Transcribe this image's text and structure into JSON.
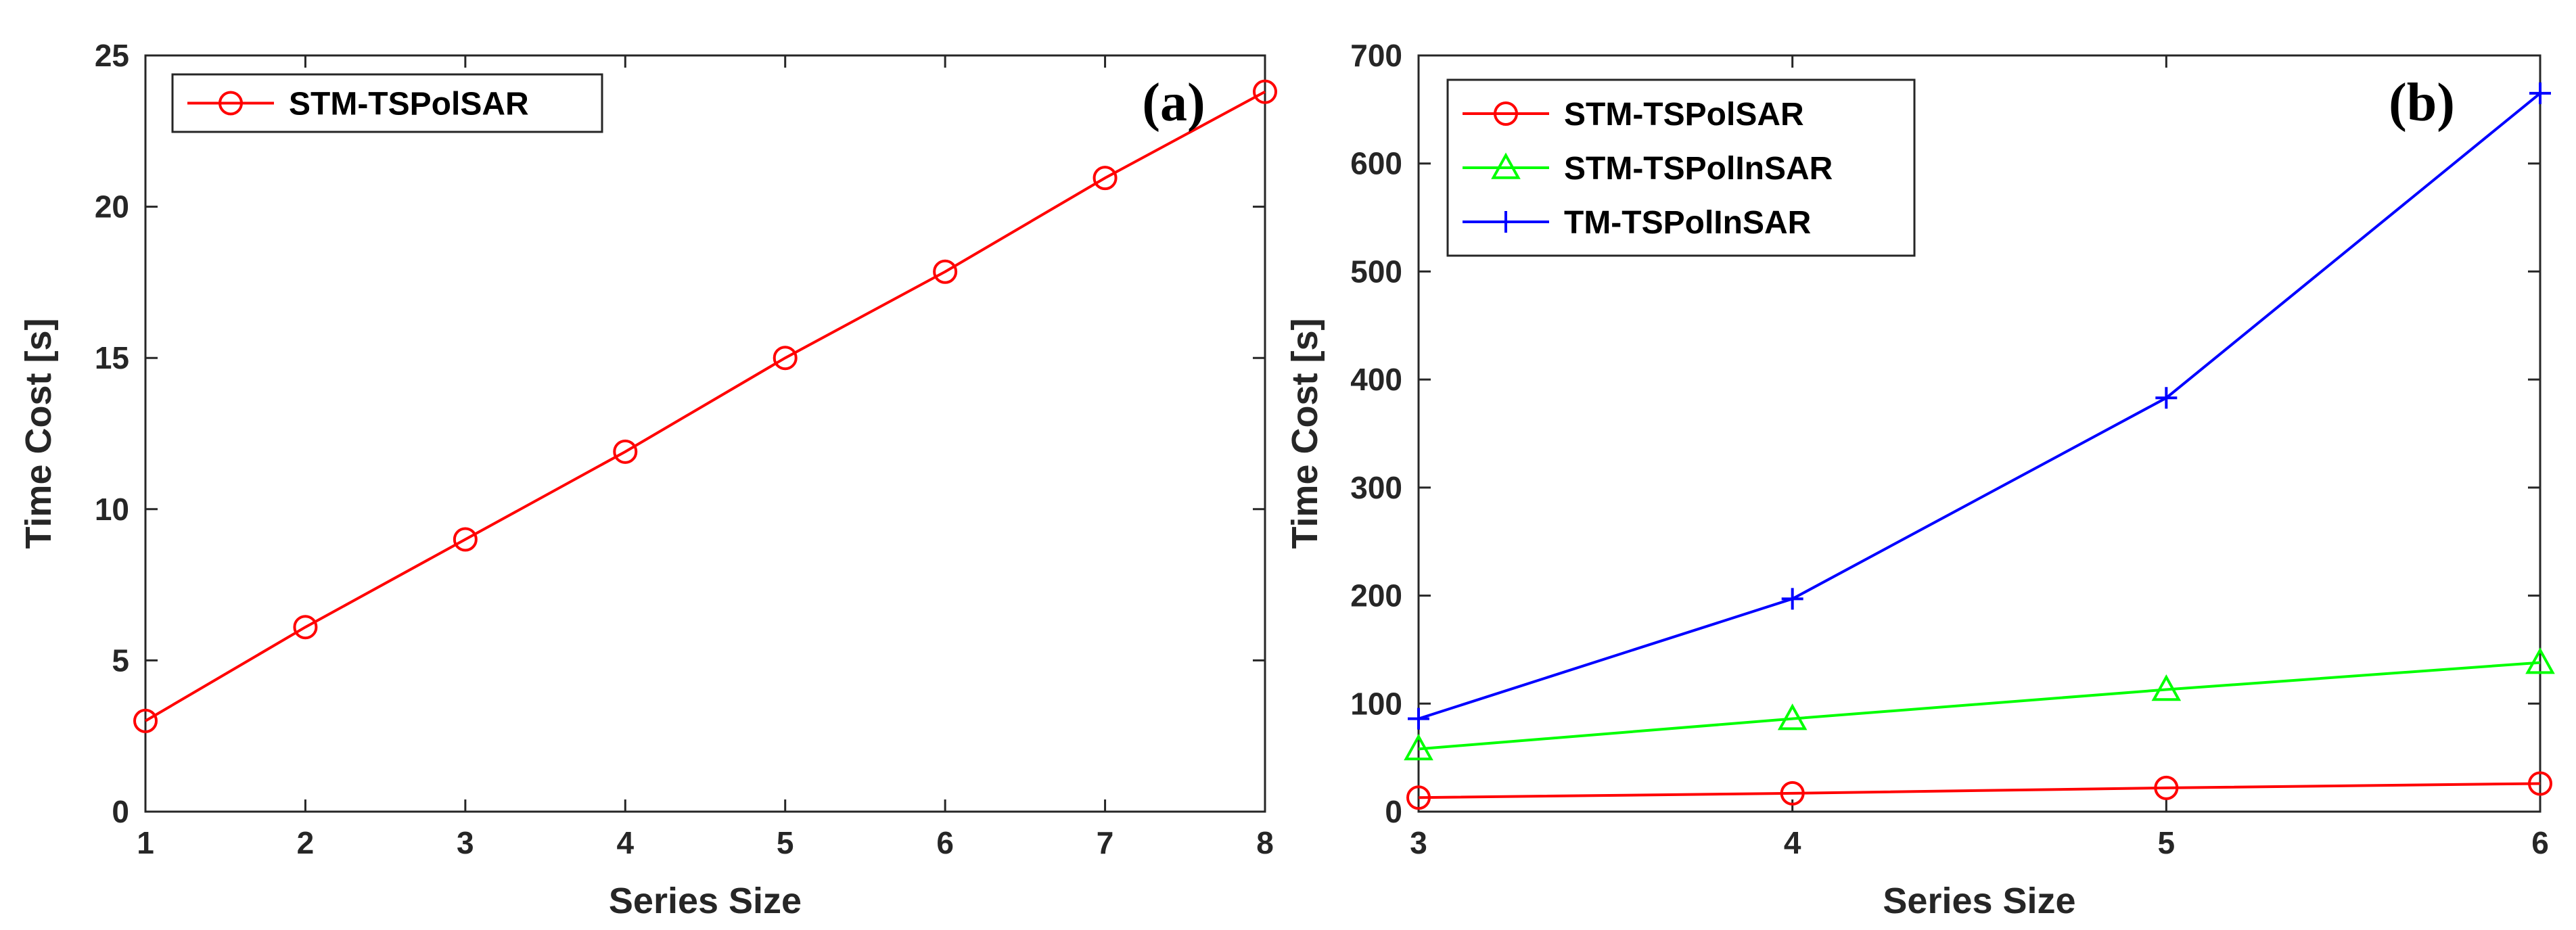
{
  "chart_data": [
    {
      "type": "line",
      "panel_label": "(a)",
      "xlabel": "Series Size",
      "ylabel": "Time Cost [s]",
      "xlim": [
        1,
        8
      ],
      "ylim": [
        0,
        25
      ],
      "xticks": [
        "1",
        "2",
        "3",
        "4",
        "5",
        "6",
        "7",
        "8"
      ],
      "yticks": [
        "0",
        "5",
        "10",
        "15",
        "20",
        "25"
      ],
      "grid": false,
      "legend_position": "top-left",
      "series": [
        {
          "name": "STM-TSPolSAR",
          "color": "#ff0000",
          "marker": "circle",
          "x": [
            1,
            2,
            3,
            4,
            5,
            6,
            7,
            8
          ],
          "values": [
            3.0,
            6.1,
            9.0,
            11.9,
            15.0,
            17.85,
            20.95,
            23.8
          ]
        }
      ]
    },
    {
      "type": "line",
      "panel_label": "(b)",
      "xlabel": "Series Size",
      "ylabel": "Time Cost [s]",
      "xlim": [
        3,
        6
      ],
      "ylim": [
        0,
        700
      ],
      "xticks": [
        "3",
        "4",
        "5",
        "6"
      ],
      "yticks": [
        "0",
        "100",
        "200",
        "300",
        "400",
        "500",
        "600",
        "700"
      ],
      "grid": false,
      "legend_position": "top-left",
      "series": [
        {
          "name": "STM-TSPolSAR",
          "color": "#ff0000",
          "marker": "circle",
          "x": [
            3,
            4,
            5,
            6
          ],
          "values": [
            13,
            17,
            22,
            26
          ]
        },
        {
          "name": "STM-TSPolInSAR",
          "color": "#00ff00",
          "marker": "triangle",
          "x": [
            3,
            4,
            5,
            6
          ],
          "values": [
            58,
            86,
            113,
            138
          ]
        },
        {
          "name": "TM-TSPolInSAR",
          "color": "#0000ff",
          "marker": "plus",
          "x": [
            3,
            4,
            5,
            6
          ],
          "values": [
            86,
            197,
            383,
            665
          ]
        }
      ]
    }
  ]
}
